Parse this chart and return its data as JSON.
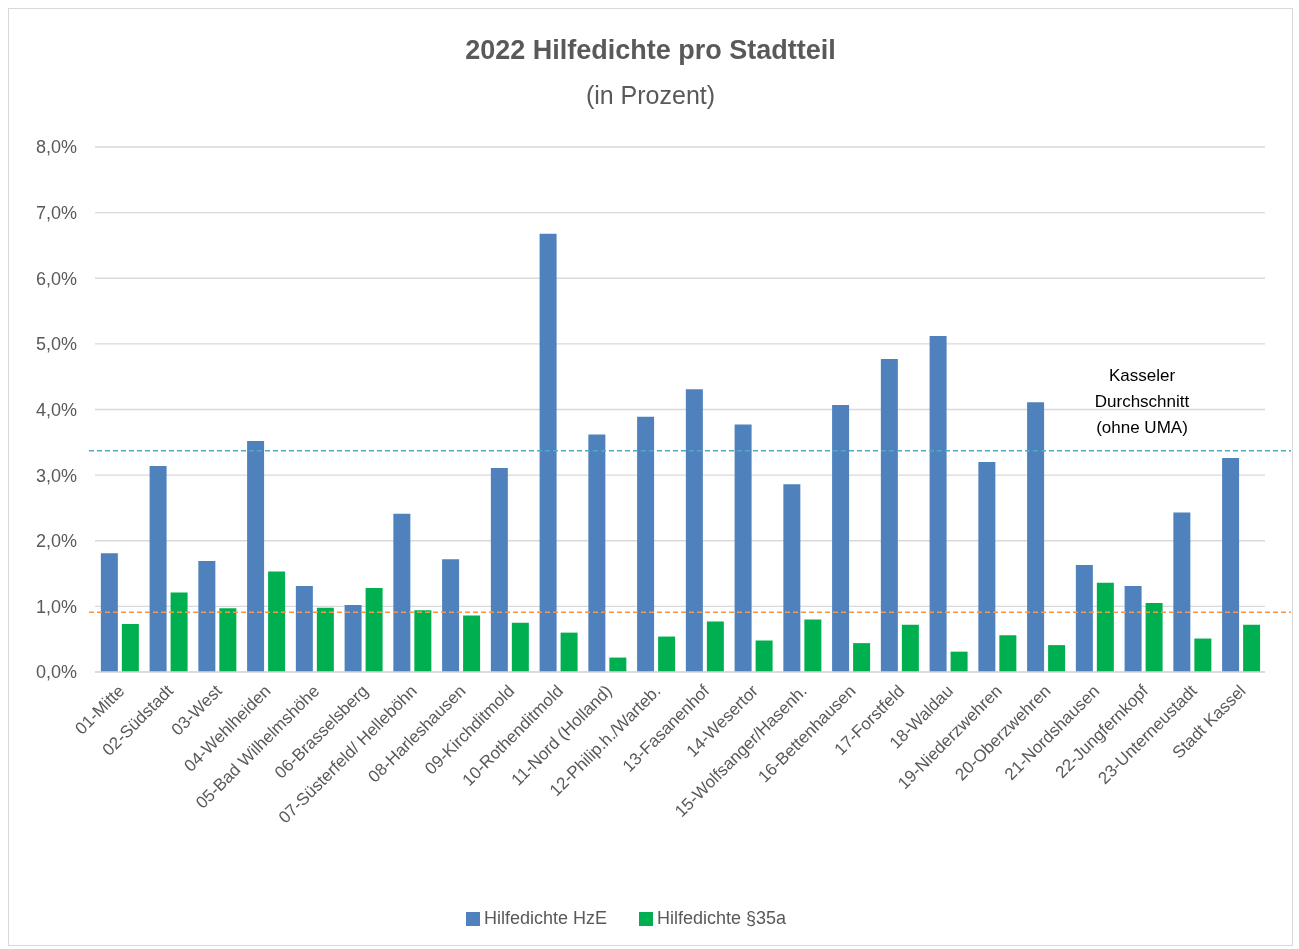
{
  "chart_data": {
    "type": "bar",
    "title": "2022 Hilfedichte pro Stadtteil",
    "subtitle": "(in Prozent)",
    "categories": [
      "01-Mitte",
      "02-Südstadt",
      "03-West",
      "04-Wehlheiden",
      "05-Bad Wilhelmshöhe",
      "06-Brasselsberg",
      "07-Süsterfeld/ Helleböhn",
      "08-Harleshausen",
      "09-Kirchditmold",
      "10-Rothenditmold",
      "11-Nord (Holland)",
      "12-Philip.h./Warteb.",
      "13-Fasanenhof",
      "14-Wesertor",
      "15-Wolfsanger/Hasenh.",
      "16-Bettenhausen",
      "17-Forstfeld",
      "18-Waldau",
      "19-Niederzwehren",
      "20-Oberzwehren",
      "21-Nordshausen",
      "22-Jungfernkopf",
      "23-Unterneustadt",
      "Stadt Kassel"
    ],
    "series": [
      {
        "name": "Hilfedichte HzE",
        "color": "#4f81bd",
        "values": [
          1.81,
          3.14,
          1.69,
          3.52,
          1.31,
          1.02,
          2.41,
          1.72,
          3.11,
          6.68,
          3.62,
          3.89,
          4.31,
          3.77,
          2.86,
          4.07,
          4.77,
          5.12,
          3.2,
          4.11,
          1.63,
          1.31,
          2.43,
          3.26
        ]
      },
      {
        "name": "Hilfedichte §35a",
        "color": "#00b050",
        "values": [
          0.73,
          1.21,
          0.97,
          1.53,
          0.98,
          1.28,
          0.94,
          0.86,
          0.75,
          0.6,
          0.22,
          0.54,
          0.77,
          0.48,
          0.8,
          0.44,
          0.72,
          0.31,
          0.56,
          0.41,
          1.36,
          1.05,
          0.51,
          0.72
        ]
      }
    ],
    "ylim": [
      0,
      8
    ],
    "yticks": [
      {
        "value": 0,
        "label": "0,0%"
      },
      {
        "value": 1,
        "label": "1,0%"
      },
      {
        "value": 2,
        "label": "2,0%"
      },
      {
        "value": 3,
        "label": "3,0%"
      },
      {
        "value": 4,
        "label": "4,0%"
      },
      {
        "value": 5,
        "label": "5,0%"
      },
      {
        "value": 6,
        "label": "6,0%"
      },
      {
        "value": 7,
        "label": "7,0%"
      },
      {
        "value": 8,
        "label": "8,0%"
      }
    ],
    "ref_lines": [
      {
        "axis": "y",
        "value": 3.37,
        "label": "Kasseler Durchschnitt (ohne UMA)",
        "color": "#4bacc6",
        "line_style": "dashed"
      },
      {
        "axis": "y",
        "value": 0.91,
        "color": "#f79646",
        "line_style": "dashed"
      }
    ],
    "grid": "y",
    "legend": "bottom"
  }
}
